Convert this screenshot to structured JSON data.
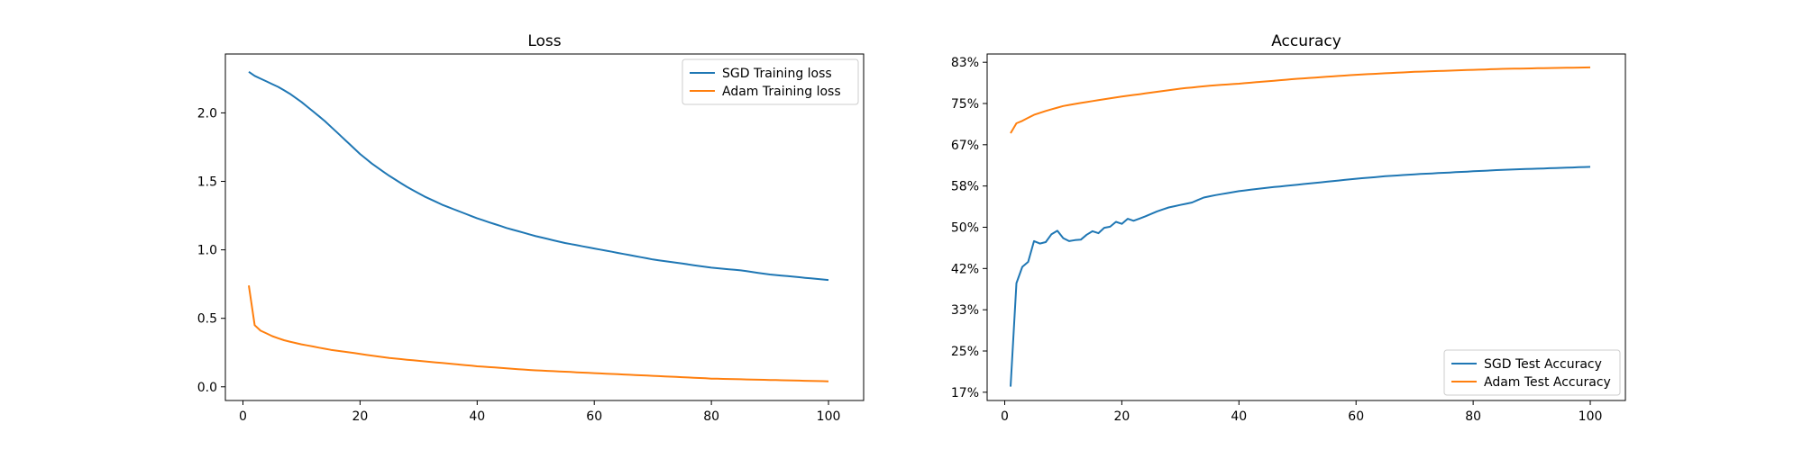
{
  "chart_data": [
    {
      "type": "line",
      "title": "Loss",
      "xlabel": "",
      "ylabel": "",
      "xlim": [
        -3,
        106
      ],
      "ylim": [
        -0.1,
        2.43
      ],
      "xticks": [
        0,
        20,
        40,
        60,
        80,
        100
      ],
      "yticks": [
        0.0,
        0.5,
        1.0,
        1.5,
        2.0
      ],
      "ytick_labels": [
        "0.0",
        "0.5",
        "1.0",
        "1.5",
        "2.0"
      ],
      "legend_position": "upper-right",
      "grid": false,
      "series": [
        {
          "name": "SGD Training loss",
          "color": "#1f77b4",
          "anchors": [
            [
              1,
              2.3
            ],
            [
              2,
              2.27
            ],
            [
              4,
              2.23
            ],
            [
              6,
              2.19
            ],
            [
              8,
              2.14
            ],
            [
              10,
              2.08
            ],
            [
              12,
              2.01
            ],
            [
              14,
              1.94
            ],
            [
              16,
              1.86
            ],
            [
              18,
              1.78
            ],
            [
              20,
              1.7
            ],
            [
              22,
              1.63
            ],
            [
              25,
              1.54
            ],
            [
              28,
              1.46
            ],
            [
              31,
              1.39
            ],
            [
              34,
              1.33
            ],
            [
              37,
              1.28
            ],
            [
              40,
              1.23
            ],
            [
              45,
              1.16
            ],
            [
              50,
              1.1
            ],
            [
              55,
              1.05
            ],
            [
              60,
              1.01
            ],
            [
              65,
              0.97
            ],
            [
              70,
              0.93
            ],
            [
              75,
              0.9
            ],
            [
              80,
              0.87
            ],
            [
              85,
              0.85
            ],
            [
              90,
              0.82
            ],
            [
              95,
              0.8
            ],
            [
              100,
              0.78
            ]
          ]
        },
        {
          "name": "Adam Training loss",
          "color": "#ff7f0e",
          "anchors": [
            [
              1,
              0.74
            ],
            [
              2,
              0.45
            ],
            [
              3,
              0.41
            ],
            [
              4,
              0.39
            ],
            [
              5,
              0.37
            ],
            [
              7,
              0.34
            ],
            [
              10,
              0.31
            ],
            [
              15,
              0.27
            ],
            [
              20,
              0.24
            ],
            [
              25,
              0.21
            ],
            [
              30,
              0.19
            ],
            [
              35,
              0.17
            ],
            [
              40,
              0.15
            ],
            [
              50,
              0.12
            ],
            [
              60,
              0.1
            ],
            [
              70,
              0.08
            ],
            [
              80,
              0.06
            ],
            [
              90,
              0.05
            ],
            [
              100,
              0.04
            ]
          ]
        }
      ]
    },
    {
      "type": "line",
      "title": "Accuracy",
      "xlabel": "",
      "ylabel": "",
      "xlim": [
        -3,
        106
      ],
      "ylim": [
        0.15,
        0.85
      ],
      "xticks": [
        0,
        20,
        40,
        60,
        80,
        100
      ],
      "yticks": [
        0.1667,
        0.25,
        0.3333,
        0.4167,
        0.5,
        0.5833,
        0.6667,
        0.75,
        0.8333
      ],
      "ytick_labels": [
        "17%",
        "25%",
        "33%",
        "42%",
        "50%",
        "58%",
        "67%",
        "75%",
        "83%"
      ],
      "legend_position": "lower-right",
      "grid": false,
      "series": [
        {
          "name": "SGD Test Accuracy",
          "color": "#1f77b4",
          "anchors": [
            [
              1,
              0.178
            ],
            [
              2,
              0.387
            ],
            [
              3,
              0.42
            ],
            [
              4,
              0.43
            ],
            [
              5,
              0.472
            ],
            [
              6,
              0.467
            ],
            [
              7,
              0.47
            ],
            [
              8,
              0.486
            ],
            [
              9,
              0.493
            ],
            [
              10,
              0.478
            ],
            [
              11,
              0.472
            ],
            [
              12,
              0.474
            ],
            [
              13,
              0.475
            ],
            [
              14,
              0.485
            ],
            [
              15,
              0.492
            ],
            [
              16,
              0.488
            ],
            [
              17,
              0.499
            ],
            [
              18,
              0.501
            ],
            [
              19,
              0.511
            ],
            [
              20,
              0.507
            ],
            [
              21,
              0.517
            ],
            [
              22,
              0.513
            ],
            [
              24,
              0.522
            ],
            [
              26,
              0.532
            ],
            [
              28,
              0.54
            ],
            [
              30,
              0.545
            ],
            [
              32,
              0.55
            ],
            [
              34,
              0.56
            ],
            [
              36,
              0.565
            ],
            [
              38,
              0.569
            ],
            [
              40,
              0.573
            ],
            [
              45,
              0.58
            ],
            [
              50,
              0.586
            ],
            [
              55,
              0.592
            ],
            [
              60,
              0.598
            ],
            [
              65,
              0.603
            ],
            [
              70,
              0.607
            ],
            [
              75,
              0.61
            ],
            [
              80,
              0.613
            ],
            [
              85,
              0.616
            ],
            [
              90,
              0.618
            ],
            [
              95,
              0.62
            ],
            [
              100,
              0.622
            ]
          ]
        },
        {
          "name": "Adam Test Accuracy",
          "color": "#ff7f0e",
          "anchors": [
            [
              1,
              0.69
            ],
            [
              2,
              0.71
            ],
            [
              3,
              0.715
            ],
            [
              5,
              0.727
            ],
            [
              7,
              0.735
            ],
            [
              10,
              0.745
            ],
            [
              15,
              0.755
            ],
            [
              20,
              0.764
            ],
            [
              25,
              0.772
            ],
            [
              30,
              0.78
            ],
            [
              35,
              0.786
            ],
            [
              40,
              0.79
            ],
            [
              45,
              0.795
            ],
            [
              50,
              0.8
            ],
            [
              55,
              0.804
            ],
            [
              60,
              0.808
            ],
            [
              65,
              0.811
            ],
            [
              70,
              0.814
            ],
            [
              75,
              0.816
            ],
            [
              80,
              0.818
            ],
            [
              85,
              0.82
            ],
            [
              90,
              0.821
            ],
            [
              95,
              0.822
            ],
            [
              100,
              0.823
            ]
          ]
        }
      ]
    }
  ]
}
